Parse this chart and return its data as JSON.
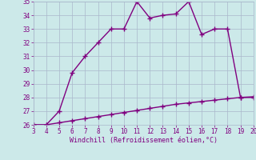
{
  "xlabel": "Windchill (Refroidissement éolien,°C)",
  "x_curve": [
    3,
    4,
    5,
    6,
    7,
    8,
    9,
    10,
    11,
    12,
    13,
    14,
    15,
    16,
    17,
    18,
    19,
    20
  ],
  "y_curve": [
    26,
    26,
    27,
    29.8,
    31,
    32,
    33,
    33,
    35,
    33.8,
    34,
    34.1,
    35,
    32.6,
    33,
    33,
    28,
    28
  ],
  "x_line": [
    3,
    4,
    5,
    6,
    7,
    8,
    9,
    10,
    11,
    12,
    13,
    14,
    15,
    16,
    17,
    18,
    19,
    20
  ],
  "y_line": [
    26,
    26,
    26.15,
    26.3,
    26.45,
    26.6,
    26.75,
    26.9,
    27.05,
    27.2,
    27.35,
    27.5,
    27.6,
    27.7,
    27.8,
    27.9,
    28.0,
    28.05
  ],
  "xlim": [
    3,
    20
  ],
  "ylim": [
    26,
    35
  ],
  "yticks": [
    26,
    27,
    28,
    29,
    30,
    31,
    32,
    33,
    34,
    35
  ],
  "xticks": [
    3,
    4,
    5,
    6,
    7,
    8,
    9,
    10,
    11,
    12,
    13,
    14,
    15,
    16,
    17,
    18,
    19,
    20
  ],
  "line_color": "#800080",
  "bg_color": "#cce9e9",
  "grid_color": "#aab8cc",
  "font_color": "#800080",
  "font_family": "monospace",
  "fig_width": 3.2,
  "fig_height": 2.0,
  "dpi": 100
}
